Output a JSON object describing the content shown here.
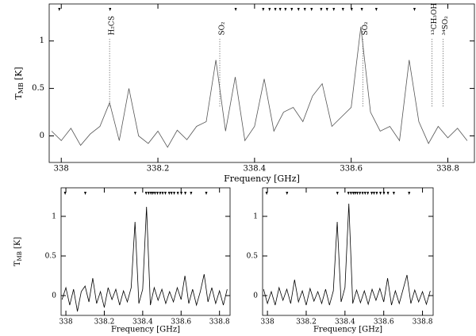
{
  "chart_data": [
    {
      "type": "line",
      "xlabel": "Frequency [GHz]",
      "ylabel": "T",
      "ylabel_sub": "MB",
      "ylabel_unit": "[K]",
      "xlim": [
        337.975,
        338.855
      ],
      "ylim": [
        -0.28,
        1.39
      ],
      "xticks": [
        338,
        338.2,
        338.4,
        338.6,
        338.8
      ],
      "yticks": [
        0,
        0.5,
        1
      ],
      "markers": [
        337.996,
        338.101,
        338.361,
        338.418,
        338.431,
        338.443,
        338.453,
        338.464,
        338.477,
        338.491,
        338.504,
        338.518,
        338.538,
        338.55,
        338.564,
        338.583,
        338.601,
        338.622,
        338.652,
        338.731
      ],
      "annotations": [
        {
          "text": "H₂CS",
          "x": 338.1
        },
        {
          "text": "SO₂",
          "x": 338.328
        },
        {
          "text": "SO₂",
          "x": 338.624
        },
        {
          "text": "¹³CH₃OH",
          "x": 338.767
        },
        {
          "text": "³⁴SO₂",
          "x": 338.79
        }
      ],
      "series": [
        {
          "color": "#555555",
          "x": [
            337.98,
            338.0,
            338.02,
            338.04,
            338.06,
            338.08,
            338.1,
            338.12,
            338.14,
            338.16,
            338.18,
            338.2,
            338.22,
            338.24,
            338.26,
            338.28,
            338.3,
            338.32,
            338.34,
            338.36,
            338.38,
            338.4,
            338.42,
            338.44,
            338.46,
            338.48,
            338.5,
            338.52,
            338.54,
            338.56,
            338.58,
            338.6,
            338.62,
            338.64,
            338.66,
            338.68,
            338.7,
            338.72,
            338.74,
            338.76,
            338.78,
            338.8,
            338.82,
            338.84
          ],
          "values": [
            0.05,
            -0.05,
            0.08,
            -0.1,
            0.02,
            0.1,
            0.35,
            -0.05,
            0.5,
            0.0,
            -0.08,
            0.05,
            -0.12,
            0.06,
            -0.04,
            0.1,
            0.15,
            0.8,
            0.05,
            0.62,
            -0.05,
            0.1,
            0.6,
            0.05,
            0.25,
            0.3,
            0.15,
            0.42,
            0.55,
            0.1,
            0.2,
            0.3,
            1.15,
            0.25,
            0.05,
            0.1,
            -0.05,
            0.8,
            0.15,
            -0.08,
            0.1,
            -0.02,
            0.08,
            -0.05
          ]
        }
      ]
    },
    {
      "type": "line",
      "xlabel": "Frequency [GHz]",
      "ylabel": "T",
      "ylabel_sub": "MB",
      "ylabel_unit": "[K]",
      "xlim": [
        337.975,
        338.855
      ],
      "ylim": [
        -0.25,
        1.36
      ],
      "xticks": [
        338,
        338.2,
        338.4,
        338.6,
        338.8
      ],
      "yticks": [
        0,
        0.5,
        1
      ],
      "markers": [
        337.996,
        338.101,
        338.361,
        338.418,
        338.431,
        338.443,
        338.453,
        338.464,
        338.477,
        338.491,
        338.504,
        338.518,
        338.538,
        338.55,
        338.564,
        338.583,
        338.601,
        338.622,
        338.652,
        338.731
      ],
      "series": [
        {
          "color": "#000000",
          "x": [
            337.98,
            338.0,
            338.02,
            338.04,
            338.06,
            338.08,
            338.1,
            338.12,
            338.14,
            338.16,
            338.18,
            338.2,
            338.22,
            338.24,
            338.26,
            338.28,
            338.3,
            338.32,
            338.34,
            338.36,
            338.38,
            338.4,
            338.42,
            338.44,
            338.46,
            338.48,
            338.5,
            338.52,
            338.54,
            338.56,
            338.58,
            338.6,
            338.62,
            338.64,
            338.66,
            338.68,
            338.7,
            338.72,
            338.74,
            338.76,
            338.78,
            338.8,
            338.82,
            338.84
          ],
          "values": [
            -0.05,
            0.1,
            -0.12,
            0.08,
            -0.2,
            0.05,
            0.12,
            -0.08,
            0.22,
            -0.1,
            0.05,
            -0.15,
            0.1,
            -0.05,
            0.08,
            -0.12,
            0.06,
            -0.08,
            0.1,
            0.93,
            -0.1,
            0.08,
            1.12,
            -0.12,
            0.1,
            -0.06,
            0.08,
            -0.1,
            0.05,
            -0.08,
            0.1,
            -0.05,
            0.25,
            -0.1,
            0.08,
            -0.12,
            0.05,
            0.27,
            -0.08,
            0.1,
            -0.1,
            0.06,
            -0.12,
            0.08
          ]
        }
      ]
    },
    {
      "type": "line",
      "xlabel": "Frequency [GHz]",
      "xlim": [
        337.975,
        338.855
      ],
      "ylim": [
        -0.25,
        1.36
      ],
      "xticks": [
        338,
        338.2,
        338.4,
        338.6,
        338.8
      ],
      "yticks": [
        0,
        0.5,
        1
      ],
      "markers": [
        337.996,
        338.101,
        338.361,
        338.418,
        338.431,
        338.443,
        338.453,
        338.464,
        338.477,
        338.491,
        338.504,
        338.518,
        338.538,
        338.55,
        338.564,
        338.583,
        338.601,
        338.622,
        338.652,
        338.731
      ],
      "series": [
        {
          "color": "#000000",
          "x": [
            337.98,
            338.0,
            338.02,
            338.04,
            338.06,
            338.08,
            338.1,
            338.12,
            338.14,
            338.16,
            338.18,
            338.2,
            338.22,
            338.24,
            338.26,
            338.28,
            338.3,
            338.32,
            338.34,
            338.36,
            338.38,
            338.4,
            338.42,
            338.44,
            338.46,
            338.48,
            338.5,
            338.52,
            338.54,
            338.56,
            338.58,
            338.6,
            338.62,
            338.64,
            338.66,
            338.68,
            338.7,
            338.72,
            338.74,
            338.76,
            338.78,
            338.8,
            338.82,
            338.84
          ],
          "values": [
            0.08,
            -0.1,
            0.05,
            -0.12,
            0.1,
            -0.06,
            0.08,
            -0.1,
            0.2,
            -0.08,
            0.06,
            -0.12,
            0.09,
            -0.07,
            0.05,
            -0.1,
            0.08,
            -0.12,
            0.06,
            0.93,
            -0.08,
            0.1,
            1.16,
            -0.1,
            0.07,
            -0.09,
            0.06,
            -0.11,
            0.08,
            -0.06,
            0.09,
            -0.08,
            0.22,
            -0.12,
            0.06,
            -0.1,
            0.08,
            0.26,
            -0.1,
            0.07,
            -0.08,
            0.05,
            -0.11,
            0.06
          ]
        }
      ]
    }
  ]
}
